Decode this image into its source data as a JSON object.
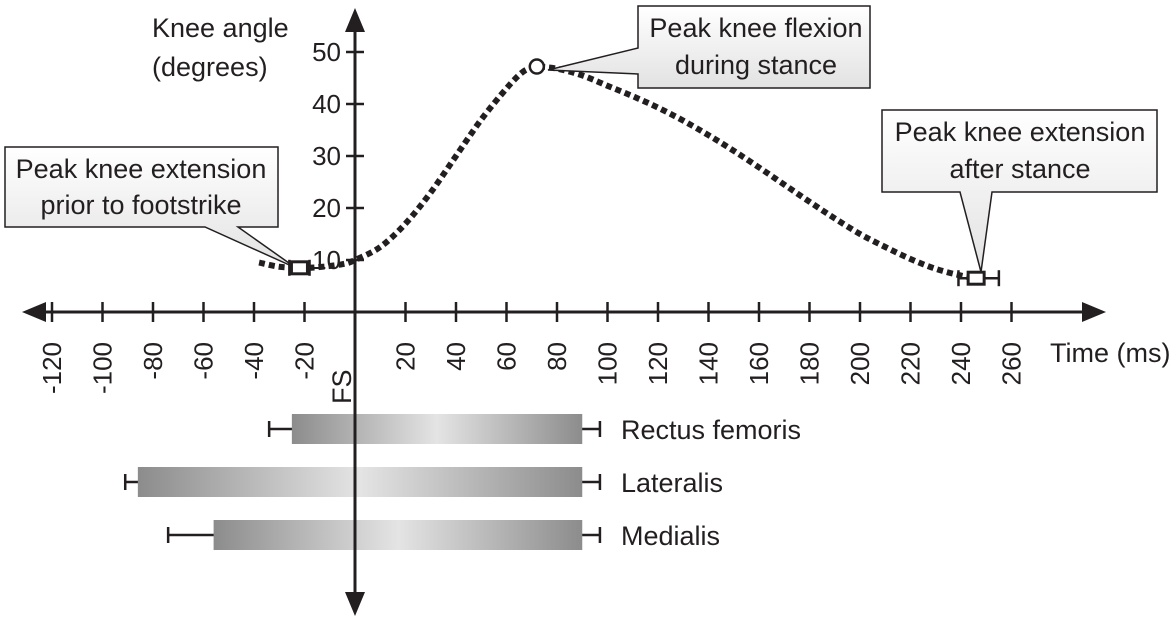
{
  "chart_data": {
    "type": "line",
    "ylabel_lines": [
      "Knee angle",
      "(degrees)"
    ],
    "xlabel": "Time (ms)",
    "footstrike_label": "FS",
    "x_ticks": [
      -120,
      -100,
      -80,
      -60,
      -40,
      -20,
      20,
      40,
      60,
      80,
      100,
      120,
      140,
      160,
      180,
      200,
      220,
      240,
      260
    ],
    "x_tick_labels": [
      "-120",
      "-100",
      "-80",
      "-60",
      "-40",
      "-20",
      "20",
      "40",
      "60",
      "80",
      "100",
      "120",
      "140",
      "160",
      "180",
      "200",
      "220",
      "240",
      "260"
    ],
    "y_ticks": [
      10,
      20,
      30,
      40,
      50
    ],
    "y_tick_labels": [
      "10",
      "20",
      "30",
      "40",
      "50"
    ],
    "xlim": [
      -130,
      290
    ],
    "ylim": [
      0,
      57
    ],
    "series": [
      {
        "x": [
          -38,
          -30,
          -22,
          -15,
          -5,
          0,
          10,
          20,
          30,
          40,
          50,
          60,
          66,
          70,
          72,
          80,
          90,
          100,
          110,
          120,
          130,
          140,
          150,
          160,
          170,
          180,
          190,
          200,
          210,
          220,
          230,
          240,
          246
        ],
        "y": [
          9.5,
          8.7,
          8.5,
          8.6,
          9.2,
          10,
          12.5,
          17,
          23,
          30,
          37,
          43,
          46,
          47,
          47.2,
          46.8,
          45.5,
          43.5,
          41.5,
          39.3,
          36.8,
          34,
          31,
          27.8,
          24.5,
          21.2,
          18,
          15,
          12.5,
          10.2,
          8.3,
          7,
          6.5
        ]
      }
    ],
    "markers": [
      {
        "label": "Peak knee extension prior to footstrike",
        "x": -22,
        "y": 8.5,
        "shape": "square",
        "error_lo": -26,
        "error_hi": -18
      },
      {
        "label": "Peak knee flexion during stance",
        "x": 72,
        "y": 47.2,
        "shape": "circle"
      },
      {
        "label": "Peak knee extension after stance",
        "x": 246,
        "y": 6.5,
        "shape": "square",
        "error_lo": 239,
        "error_hi": 255
      }
    ],
    "callouts": [
      {
        "id": "prior",
        "lines": [
          "Peak knee extension",
          "prior to footstrike"
        ]
      },
      {
        "id": "flexion",
        "lines": [
          "Peak knee flexion",
          "during stance"
        ]
      },
      {
        "id": "after",
        "lines": [
          "Peak knee extension",
          "after stance"
        ]
      }
    ],
    "emg_bars": [
      {
        "name": "Rectus femoris",
        "start": -25,
        "end": 90,
        "error_lo": -34,
        "error_hi": 97
      },
      {
        "name": "Lateralis",
        "start": -86,
        "end": 90,
        "error_lo": -91,
        "error_hi": 97
      },
      {
        "name": "Medialis",
        "start": -56,
        "end": 90,
        "error_lo": -74,
        "error_hi": 97
      }
    ],
    "colors": {
      "ink": "#231f20",
      "bar_dark": "#8c8c8c",
      "bar_light": "#e4e4e4",
      "callout_fill": "#ececec"
    }
  }
}
